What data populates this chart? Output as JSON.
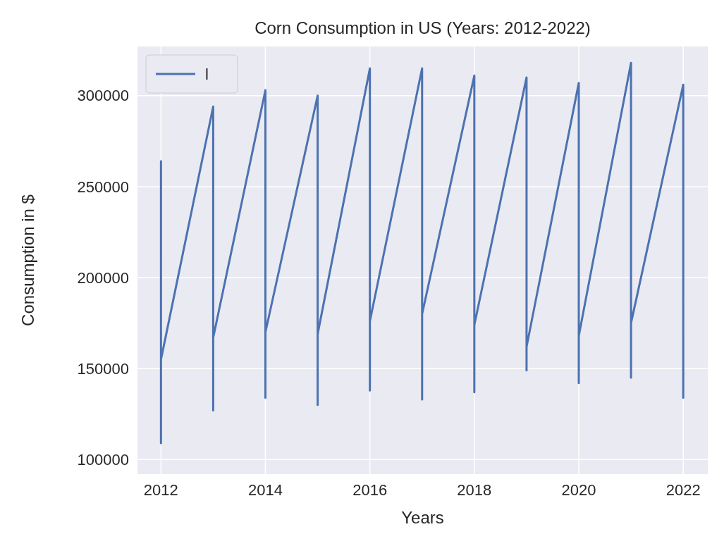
{
  "chart_data": {
    "type": "line",
    "title": "Corn Consumption in US (Years: 2012-2022)",
    "xlabel": "Years",
    "ylabel": "Consumption in $",
    "x": [
      2012,
      2012,
      2012,
      2013,
      2013,
      2013,
      2014,
      2014,
      2014,
      2015,
      2015,
      2015,
      2016,
      2016,
      2016,
      2017,
      2017,
      2017,
      2018,
      2018,
      2018,
      2019,
      2019,
      2019,
      2020,
      2020,
      2020,
      2021,
      2021,
      2021,
      2022,
      2022,
      2022
    ],
    "series": [
      {
        "name": "l",
        "color": "#4c72b0",
        "values": [
          264000,
          109000,
          155000,
          294000,
          127000,
          167000,
          303000,
          134000,
          170000,
          300000,
          130000,
          169000,
          315000,
          138000,
          176000,
          315000,
          133000,
          180000,
          311000,
          137000,
          174000,
          310000,
          149000,
          162000,
          307000,
          142000,
          168000,
          318000,
          145000,
          175000,
          306000,
          134000,
          171000
        ]
      }
    ],
    "xlim": [
      2011.55,
      2022.47
    ],
    "xticks": [
      2012,
      2014,
      2016,
      2018,
      2020,
      2022
    ],
    "ylim": [
      92000,
      327000
    ],
    "yticks": [
      100000,
      150000,
      200000,
      250000,
      300000
    ],
    "grid": true,
    "legend": "top left",
    "marker": "none",
    "line_style": "solid"
  }
}
